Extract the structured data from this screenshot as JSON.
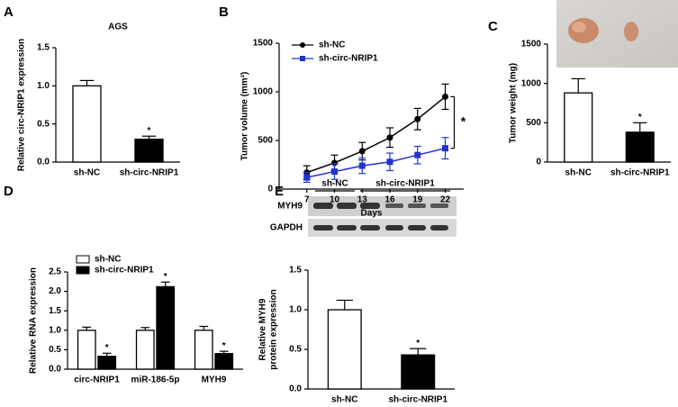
{
  "chart_data": [
    {
      "type": "bar",
      "panel": "A",
      "title": "AGS",
      "ylabel": [
        "Relative circ-NRIP1 expression"
      ],
      "categories": [
        "sh-NC",
        "sh-circ-NRIP1"
      ],
      "series": [
        {
          "colors": [
            "#ffffff",
            "#000000"
          ],
          "values": [
            1.0,
            0.3
          ],
          "errors": [
            0.07,
            0.04
          ],
          "annotations": [
            null,
            "*"
          ]
        }
      ],
      "ylim": [
        0,
        1.5
      ],
      "yticks": [
        {
          "value": 0,
          "label": "0.0"
        },
        {
          "value": 0.5,
          "label": "0.5"
        },
        {
          "value": 1,
          "label": "1.0"
        },
        {
          "value": 1.5,
          "label": "1.5"
        }
      ]
    },
    {
      "type": "line",
      "panel": "B",
      "ylabel": [
        "Tumor volume (mm³)"
      ],
      "xlabel": "Days",
      "x": [
        7,
        10,
        13,
        16,
        19,
        22
      ],
      "series": [
        {
          "name": "sh-NC",
          "color": "#000000",
          "marker": "circle",
          "values": [
            170,
            270,
            390,
            530,
            720,
            950
          ],
          "errors": [
            70,
            80,
            90,
            100,
            110,
            130
          ]
        },
        {
          "name": "sh-circ-NRIP1",
          "color": "#2233cc",
          "marker": "square",
          "values": [
            120,
            180,
            240,
            280,
            350,
            420
          ],
          "errors": [
            50,
            80,
            80,
            90,
            90,
            110
          ]
        }
      ],
      "xlim": [
        4,
        24
      ],
      "xticks": [
        7,
        10,
        13,
        16,
        19,
        22
      ],
      "ylim": [
        0,
        1500
      ],
      "yticks": [
        0,
        500,
        1000,
        1500
      ],
      "legend": "upper left",
      "annotation": "*"
    },
    {
      "type": "bar",
      "panel": "C",
      "ylabel": [
        "Tumor weight (mg)"
      ],
      "categories": [
        "sh-NC",
        "sh-circ-NRIP1"
      ],
      "series": [
        {
          "colors": [
            "#ffffff",
            "#000000"
          ],
          "values": [
            880,
            380
          ],
          "errors": [
            180,
            120
          ],
          "annotations": [
            null,
            "*"
          ]
        }
      ],
      "ylim": [
        0,
        1500
      ],
      "yticks": [
        0,
        500,
        1000,
        1500
      ]
    },
    {
      "type": "bar",
      "panel": "D",
      "ylabel": [
        "Relative RNA expression"
      ],
      "categories": [
        "circ-NRIP1",
        "miR-186-5p",
        "MYH9"
      ],
      "series": [
        {
          "name": "sh-NC",
          "color": "#ffffff",
          "values": [
            1.0,
            1.0,
            1.0
          ],
          "errors": [
            0.08,
            0.07,
            0.1
          ]
        },
        {
          "name": "sh-circ-NRIP1",
          "color": "#000000",
          "values": [
            0.33,
            2.12,
            0.4
          ],
          "errors": [
            0.08,
            0.12,
            0.06
          ],
          "annotations": [
            "*",
            "*",
            "*"
          ]
        }
      ],
      "ylim": [
        0,
        2.5
      ],
      "yticks": [
        {
          "value": 0,
          "label": "0.0"
        },
        {
          "value": 0.5,
          "label": "0.5"
        },
        {
          "value": 1,
          "label": "1.0"
        },
        {
          "value": 1.5,
          "label": "1.5"
        },
        {
          "value": 2,
          "label": "2.0"
        },
        {
          "value": 2.5,
          "label": "2.5"
        }
      ],
      "legend": "upper left"
    },
    {
      "type": "bar",
      "panel": "E",
      "ylabel": [
        "Relative MYH9",
        "protein expression"
      ],
      "blot": {
        "groups": [
          "sh-NC",
          "sh-circ-NRIP1"
        ],
        "rows": [
          "MYH9",
          "GAPDH"
        ]
      },
      "categories": [
        "sh-NC",
        "sh-circ-NRIP1"
      ],
      "series": [
        {
          "colors": [
            "#ffffff",
            "#000000"
          ],
          "values": [
            1.0,
            0.43
          ],
          "errors": [
            0.12,
            0.08
          ],
          "annotations": [
            null,
            "*"
          ]
        }
      ],
      "ylim": [
        0,
        1.5
      ],
      "yticks": [
        {
          "value": 0,
          "label": "0.0"
        },
        {
          "value": 0.5,
          "label": "0.5"
        },
        {
          "value": 1,
          "label": "1.0"
        },
        {
          "value": 1.5,
          "label": "1.5"
        }
      ]
    }
  ]
}
